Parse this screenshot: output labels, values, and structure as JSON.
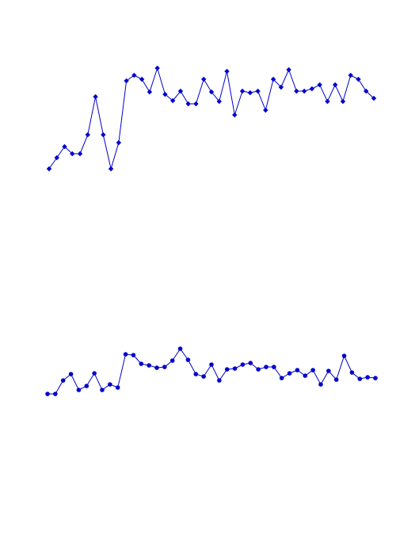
{
  "chart_data": [
    {
      "type": "line",
      "color": "#0000cc",
      "marker": "diamond",
      "ylim": [
        0,
        200
      ],
      "values": [
        37,
        51,
        65,
        56,
        56,
        80,
        128,
        80,
        37,
        70,
        148,
        155,
        150,
        134,
        164,
        131,
        123,
        135,
        119,
        119,
        150,
        134,
        122,
        160,
        105,
        135,
        133,
        135,
        111,
        150,
        140,
        162,
        135,
        135,
        138,
        143,
        122,
        143,
        122,
        155,
        150,
        135,
        126
      ]
    },
    {
      "type": "line",
      "color": "#0000cc",
      "marker": "circle",
      "ylim": [
        0,
        200
      ],
      "values": [
        53,
        53,
        70,
        78,
        58,
        63,
        79,
        58,
        65,
        61,
        103,
        102,
        91,
        89,
        86,
        87,
        95,
        110,
        96,
        78,
        75,
        90,
        70,
        84,
        85,
        90,
        92,
        84,
        87,
        87,
        73,
        79,
        83,
        76,
        83,
        65,
        82,
        71,
        101,
        80,
        72,
        74,
        73
      ]
    }
  ]
}
